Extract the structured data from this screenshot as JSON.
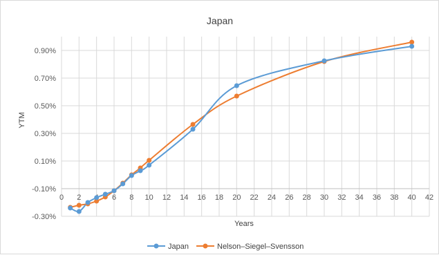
{
  "chart_data": {
    "type": "line",
    "title": "Japan",
    "xlabel": "Years",
    "ylabel": "YTM",
    "xlim": [
      0,
      42
    ],
    "ylim": [
      -0.3,
      1.0
    ],
    "x_ticks": [
      0,
      2,
      4,
      6,
      8,
      10,
      12,
      14,
      16,
      18,
      20,
      22,
      24,
      26,
      28,
      30,
      32,
      34,
      36,
      38,
      40,
      42
    ],
    "y_ticks": [
      -0.3,
      -0.1,
      0.1,
      0.3,
      0.5,
      0.7,
      0.9
    ],
    "y_tick_labels": [
      "-0.30%",
      "-0.10%",
      "0.10%",
      "0.30%",
      "0.50%",
      "0.70%",
      "0.90%"
    ],
    "grid": true,
    "legend_position": "bottom",
    "series": [
      {
        "name": "Japan",
        "color": "#5b9bd5",
        "x": [
          1,
          2,
          3,
          4,
          5,
          6,
          7,
          8,
          9,
          10,
          15,
          20,
          30,
          40
        ],
        "y": [
          -0.24,
          -0.265,
          -0.2,
          -0.165,
          -0.14,
          -0.115,
          -0.065,
          -0.005,
          0.03,
          0.07,
          0.33,
          0.645,
          0.825,
          0.93
        ]
      },
      {
        "name": "Nelson–Siegel–Svensson",
        "color": "#ed7d31",
        "x": [
          1,
          2,
          3,
          4,
          5,
          6,
          7,
          8,
          9,
          10,
          15,
          20,
          30,
          40
        ],
        "y": [
          -0.235,
          -0.22,
          -0.21,
          -0.19,
          -0.16,
          -0.115,
          -0.06,
          0.0,
          0.05,
          0.105,
          0.365,
          0.57,
          0.82,
          0.96
        ]
      }
    ]
  }
}
